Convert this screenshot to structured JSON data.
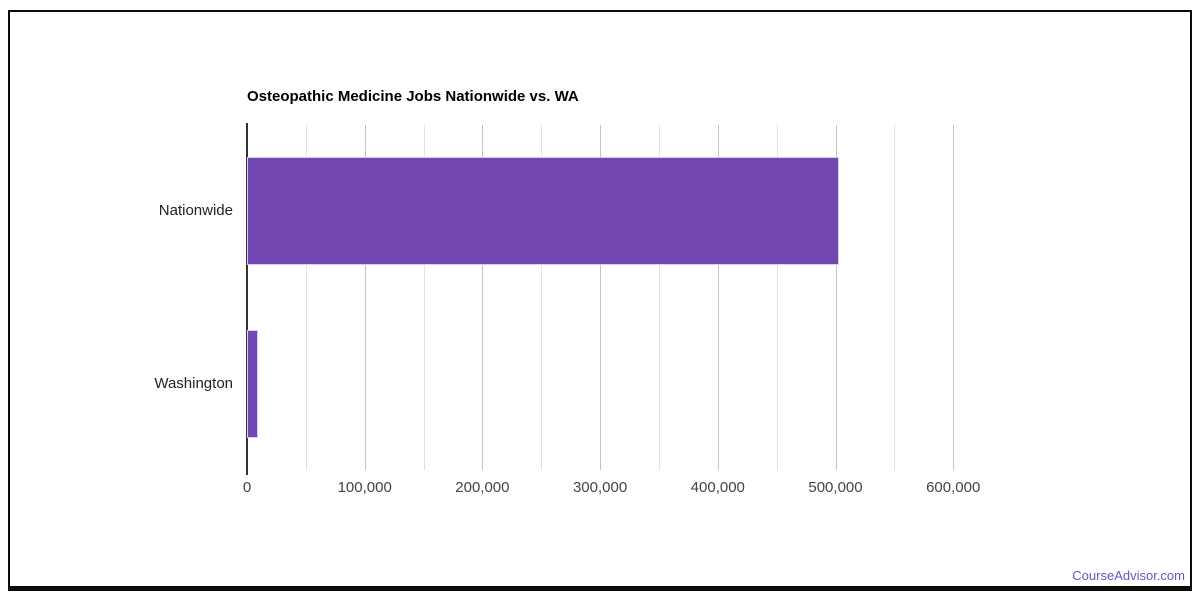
{
  "frame": {
    "border_color": "#0b0b0b",
    "background": "#ffffff"
  },
  "chart_data": {
    "type": "bar",
    "orientation": "horizontal",
    "title": "Osteopathic Medicine Jobs Nationwide vs. WA",
    "categories": [
      "Nationwide",
      "Washington"
    ],
    "values": [
      503000,
      9000
    ],
    "xlabel": "",
    "ylabel": "",
    "xlim": [
      0,
      650000
    ],
    "x_ticks": [
      0,
      100000,
      200000,
      300000,
      400000,
      500000,
      600000
    ],
    "x_tick_labels": [
      "0",
      "100,000",
      "200,000",
      "300,000",
      "400,000",
      "500,000",
      "600,000"
    ],
    "minor_tick_interval": 50000,
    "grid": true,
    "legend_position": "none",
    "bar_color": "#7347b1",
    "bar_stroke": "#d9ceee",
    "axis_line_color": "#333333",
    "major_grid_color": "#c4c4c4",
    "minor_grid_color": "#e2e2e2",
    "tick_label_color": "#444444",
    "category_label_color": "#222222",
    "title_color": "#000000"
  },
  "watermark": {
    "label": "CourseAdvisor.com",
    "color": "#6b52c5"
  }
}
